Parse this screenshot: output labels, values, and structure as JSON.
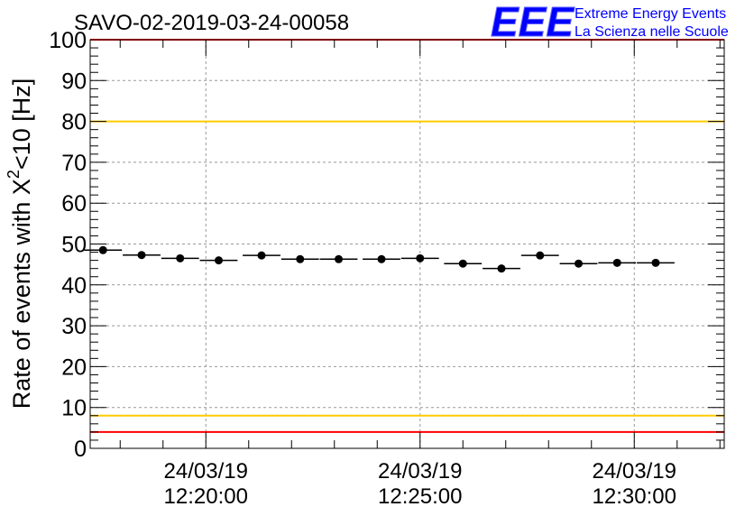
{
  "chart_data": {
    "type": "scatter",
    "title": "SAVO-02-2019-03-24-00058",
    "ylabel_main": "Rate of events with X",
    "ylabel_sup": "2",
    "ylabel_tail": "<10 [Hz]",
    "xlabel": "",
    "ylim": [
      0,
      100
    ],
    "y_ticks": [
      "0",
      "10",
      "20",
      "30",
      "40",
      "50",
      "60",
      "70",
      "80",
      "90",
      "100"
    ],
    "x_tick_labels": [
      {
        "date": "24/03/19",
        "time": "12:20:00",
        "minute": 20
      },
      {
        "date": "24/03/19",
        "time": "12:25:00",
        "minute": 25
      },
      {
        "date": "24/03/19",
        "time": "12:30:00",
        "minute": 30
      }
    ],
    "xlim_minutes": [
      17.3,
      32.1
    ],
    "bin_width_minutes": 0.88,
    "x_minutes": [
      17.6,
      18.5,
      19.4,
      20.3,
      21.3,
      22.2,
      23.1,
      24.1,
      25.0,
      26.0,
      26.9,
      27.8,
      28.7,
      29.6,
      30.5
    ],
    "values": [
      48.5,
      47.3,
      46.5,
      46.0,
      47.2,
      46.3,
      46.3,
      46.3,
      46.5,
      45.2,
      44.0,
      47.2,
      45.2,
      45.4,
      45.4
    ],
    "reference_lines": [
      {
        "value": 100,
        "color": "#ff0000"
      },
      {
        "value": 80,
        "color": "#ffcc00"
      },
      {
        "value": 8,
        "color": "#ffcc00"
      },
      {
        "value": 4,
        "color": "#ff0000"
      }
    ],
    "grid": true
  },
  "logo": {
    "text": "EEE",
    "line1": "Extreme Energy Events",
    "line2": "La Scienza nelle Scuole",
    "color": "#0000ff"
  }
}
